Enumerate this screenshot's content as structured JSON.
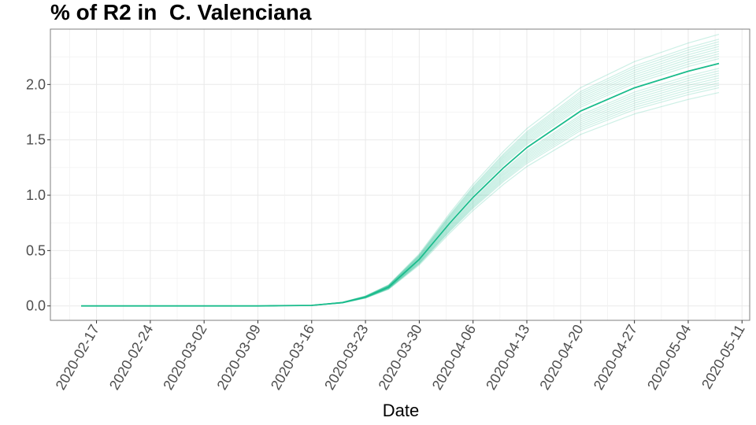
{
  "chart_data": {
    "type": "line",
    "title": "% of R2 in  C. Valenciana",
    "xlabel": "Date",
    "ylabel": "",
    "ylim": [
      -0.13,
      2.5
    ],
    "y_ticks": [
      "0.0",
      "0.5",
      "1.0",
      "1.5",
      "2.0"
    ],
    "x_ticks": [
      "2020-02-17",
      "2020-02-24",
      "2020-03-02",
      "2020-03-09",
      "2020-03-16",
      "2020-03-23",
      "2020-03-30",
      "2020-04-06",
      "2020-04-13",
      "2020-04-20",
      "2020-04-27",
      "2020-05-04",
      "2020-05-11"
    ],
    "x_range": [
      "2020-02-11",
      "2020-05-12"
    ],
    "x_data_range": [
      "2020-02-15",
      "2020-05-08"
    ],
    "grid": true,
    "line_color": "#1abc8c",
    "series": [
      {
        "role": "median",
        "values": [
          {
            "x": "2020-02-15",
            "y": 0.0
          },
          {
            "x": "2020-03-09",
            "y": 0.0
          },
          {
            "x": "2020-03-16",
            "y": 0.005
          },
          {
            "x": "2020-03-20",
            "y": 0.03
          },
          {
            "x": "2020-03-23",
            "y": 0.08
          },
          {
            "x": "2020-03-26",
            "y": 0.17
          },
          {
            "x": "2020-03-30",
            "y": 0.42
          },
          {
            "x": "2020-04-03",
            "y": 0.75
          },
          {
            "x": "2020-04-06",
            "y": 0.98
          },
          {
            "x": "2020-04-10",
            "y": 1.25
          },
          {
            "x": "2020-04-13",
            "y": 1.43
          },
          {
            "x": "2020-04-20",
            "y": 1.76
          },
          {
            "x": "2020-04-27",
            "y": 1.97
          },
          {
            "x": "2020-05-04",
            "y": 2.12
          },
          {
            "x": "2020-05-08",
            "y": 2.19
          }
        ]
      }
    ],
    "band_scales": [
      0.88,
      0.91,
      0.93,
      0.95,
      0.97,
      1.03,
      1.05,
      1.07,
      1.09,
      1.12,
      0.9,
      0.94,
      0.96,
      0.98,
      1.02,
      1.04,
      1.06,
      1.1,
      0.92,
      1.08
    ]
  }
}
